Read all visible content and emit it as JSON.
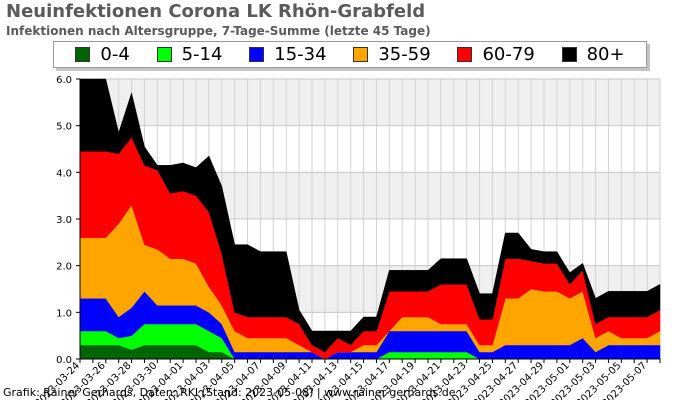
{
  "chart_data": {
    "type": "area",
    "stacked": true,
    "title": "Neuinfektionen Corona LK Rhön-Grabfeld",
    "subtitle": "Infektionen nach Altersgruppe, 7-Tage-Summe (letzte 45 Tage)",
    "footer": "Grafik: Rainer Gerhards, Daten: RKI (Stand: 2023-05-08) | www.rainer-gerhards.de",
    "ylim": [
      0,
      6
    ],
    "y_ticks": [
      "0.0",
      "1.0",
      "2.0",
      "3.0",
      "4.0",
      "5.0",
      "6.0"
    ],
    "grid": true,
    "legend_position": "top",
    "x": [
      "2023-03-24",
      "2023-03-25",
      "2023-03-26",
      "2023-03-27",
      "2023-03-28",
      "2023-03-29",
      "2023-03-30",
      "2023-03-31",
      "2023-04-01",
      "2023-04-02",
      "2023-04-03",
      "2023-04-04",
      "2023-04-05",
      "2023-04-06",
      "2023-04-07",
      "2023-04-08",
      "2023-04-09",
      "2023-04-10",
      "2023-04-11",
      "2023-04-12",
      "2023-04-13",
      "2023-04-14",
      "2023-04-15",
      "2023-04-16",
      "2023-04-17",
      "2023-04-18",
      "2023-04-19",
      "2023-04-20",
      "2023-04-21",
      "2023-04-22",
      "2023-04-23",
      "2023-04-24",
      "2023-04-25",
      "2023-04-26",
      "2023-04-27",
      "2023-04-28",
      "2023-04-29",
      "2023-04-30",
      "2023-05-01",
      "2023-05-02",
      "2023-05-03",
      "2023-05-04",
      "2023-05-05",
      "2023-05-06",
      "2023-05-07",
      "2023-05-08"
    ],
    "x_tick_labels": [
      "2023-03-24",
      "2023-03-26",
      "2023-03-28",
      "2023-03-30",
      "2023-04-01",
      "2023-04-03",
      "2023-04-05",
      "2023-04-07",
      "2023-04-09",
      "2023-04-11",
      "2023-04-13",
      "2023-04-15",
      "2023-04-17",
      "2023-04-19",
      "2023-04-21",
      "2023-04-23",
      "2023-04-25",
      "2023-04-27",
      "2023-04-29",
      "2023-05-01",
      "2023-05-03",
      "2023-05-05",
      "2023-05-07"
    ],
    "series": [
      {
        "name": "0-4",
        "color": "#006400",
        "values": [
          0.3,
          0.3,
          0.3,
          0.3,
          0.2,
          0.3,
          0.3,
          0.3,
          0.3,
          0.3,
          0.15,
          0.15,
          0.0,
          0.0,
          0.0,
          0.0,
          0.0,
          0.0,
          0.0,
          0.0,
          0.0,
          0.0,
          0.0,
          0.0,
          0.0,
          0.0,
          0.0,
          0.0,
          0.0,
          0.0,
          0.0,
          0.0,
          0.0,
          0.0,
          0.0,
          0.0,
          0.0,
          0.0,
          0.0,
          0.0,
          0.0,
          0.0,
          0.0,
          0.0,
          0.0,
          0.0
        ]
      },
      {
        "name": "5-14",
        "color": "#00ff00",
        "values": [
          0.3,
          0.3,
          0.3,
          0.15,
          0.3,
          0.45,
          0.45,
          0.45,
          0.45,
          0.45,
          0.45,
          0.3,
          0.0,
          0.0,
          0.0,
          0.0,
          0.0,
          0.0,
          0.0,
          0.0,
          0.0,
          0.0,
          0.0,
          0.0,
          0.15,
          0.15,
          0.15,
          0.15,
          0.15,
          0.15,
          0.15,
          0.0,
          0.0,
          0.0,
          0.0,
          0.0,
          0.0,
          0.0,
          0.0,
          0.0,
          0.0,
          0.0,
          0.0,
          0.0,
          0.0,
          0.0
        ]
      },
      {
        "name": "15-34",
        "color": "#0000ff",
        "values": [
          0.7,
          0.7,
          0.7,
          0.45,
          0.6,
          0.7,
          0.4,
          0.4,
          0.4,
          0.4,
          0.4,
          0.3,
          0.15,
          0.15,
          0.15,
          0.15,
          0.15,
          0.15,
          0.15,
          0.0,
          0.15,
          0.15,
          0.15,
          0.15,
          0.45,
          0.45,
          0.45,
          0.45,
          0.45,
          0.45,
          0.45,
          0.15,
          0.15,
          0.3,
          0.3,
          0.3,
          0.3,
          0.3,
          0.3,
          0.45,
          0.15,
          0.3,
          0.3,
          0.3,
          0.3,
          0.3
        ]
      },
      {
        "name": "35-59",
        "color": "#ffa500",
        "values": [
          1.3,
          1.3,
          1.3,
          2.0,
          2.2,
          1.0,
          1.2,
          1.0,
          1.0,
          0.9,
          0.55,
          0.4,
          0.45,
          0.3,
          0.3,
          0.3,
          0.3,
          0.15,
          0.0,
          0.0,
          0.0,
          0.0,
          0.15,
          0.15,
          0.0,
          0.3,
          0.3,
          0.3,
          0.15,
          0.15,
          0.15,
          0.15,
          0.15,
          1.0,
          1.0,
          1.2,
          1.15,
          1.15,
          1.0,
          1.0,
          0.3,
          0.3,
          0.15,
          0.15,
          0.15,
          0.3
        ]
      },
      {
        "name": "60-79",
        "color": "#ff0000",
        "values": [
          1.85,
          1.85,
          1.85,
          1.5,
          1.45,
          1.7,
          1.7,
          1.4,
          1.45,
          1.45,
          1.6,
          1.1,
          0.4,
          0.45,
          0.45,
          0.45,
          0.45,
          0.45,
          0.15,
          0.15,
          0.3,
          0.15,
          0.3,
          0.3,
          0.85,
          0.55,
          0.55,
          0.55,
          0.85,
          0.85,
          0.85,
          0.55,
          0.55,
          0.85,
          0.85,
          0.6,
          0.6,
          0.6,
          0.3,
          0.45,
          0.3,
          0.3,
          0.45,
          0.45,
          0.45,
          0.45
        ]
      },
      {
        "name": "80+",
        "color": "#000000",
        "values": [
          1.55,
          1.55,
          1.55,
          0.45,
          0.95,
          0.4,
          0.1,
          0.6,
          0.6,
          0.6,
          1.2,
          1.45,
          1.45,
          1.55,
          1.4,
          1.4,
          1.4,
          0.3,
          0.3,
          0.45,
          0.15,
          0.3,
          0.3,
          0.3,
          0.45,
          0.45,
          0.45,
          0.45,
          0.55,
          0.55,
          0.55,
          0.55,
          0.55,
          0.55,
          0.55,
          0.25,
          0.25,
          0.25,
          0.25,
          0.15,
          0.55,
          0.55,
          0.55,
          0.55,
          0.55,
          0.55
        ]
      }
    ]
  }
}
